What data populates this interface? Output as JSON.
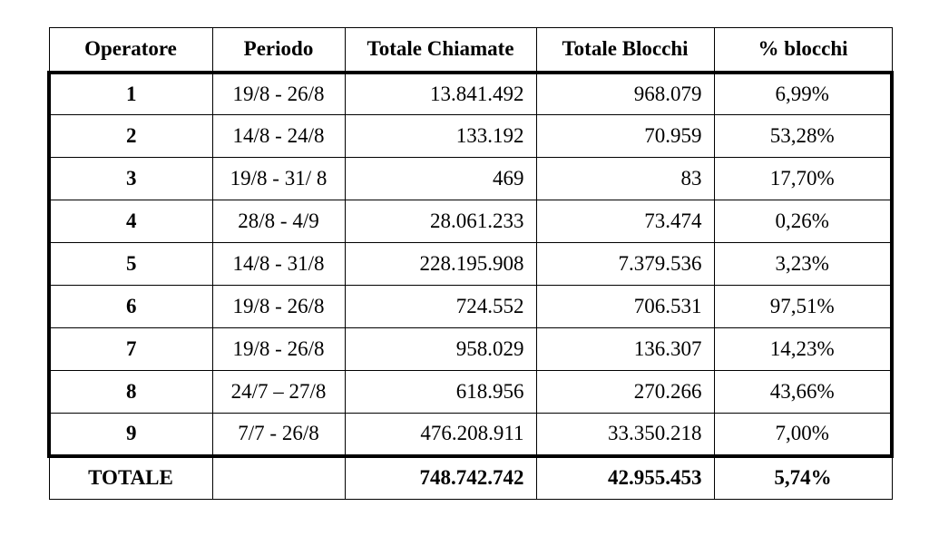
{
  "table": {
    "headers": [
      "Operatore",
      "Periodo",
      "Totale Chiamate",
      "Totale Blocchi",
      "% blocchi"
    ],
    "rows": [
      {
        "operatore": "1",
        "periodo": "19/8 - 26/8",
        "chiamate": "13.841.492",
        "blocchi": "968.079",
        "percent": "6,99%"
      },
      {
        "operatore": "2",
        "periodo": "14/8 - 24/8",
        "chiamate": "133.192",
        "blocchi": "70.959",
        "percent": "53,28%"
      },
      {
        "operatore": "3",
        "periodo": "19/8 - 31/ 8",
        "chiamate": "469",
        "blocchi": "83",
        "percent": "17,70%"
      },
      {
        "operatore": "4",
        "periodo": "28/8 - 4/9",
        "chiamate": "28.061.233",
        "blocchi": "73.474",
        "percent": "0,26%"
      },
      {
        "operatore": "5",
        "periodo": "14/8 - 31/8",
        "chiamate": "228.195.908",
        "blocchi": "7.379.536",
        "percent": "3,23%"
      },
      {
        "operatore": "6",
        "periodo": "19/8 - 26/8",
        "chiamate": "724.552",
        "blocchi": "706.531",
        "percent": "97,51%"
      },
      {
        "operatore": "7",
        "periodo": "19/8 - 26/8",
        "chiamate": "958.029",
        "blocchi": "136.307",
        "percent": "14,23%"
      },
      {
        "operatore": "8",
        "periodo": "24/7 – 27/8",
        "chiamate": "618.956",
        "blocchi": "270.266",
        "percent": "43,66%"
      },
      {
        "operatore": "9",
        "periodo": "7/7 - 26/8",
        "chiamate": "476.208.911",
        "blocchi": "33.350.218",
        "percent": "7,00%"
      }
    ],
    "total": {
      "label": "TOTALE",
      "periodo": "",
      "chiamate": "748.742.742",
      "blocchi": "42.955.453",
      "percent": "5,74%"
    }
  }
}
